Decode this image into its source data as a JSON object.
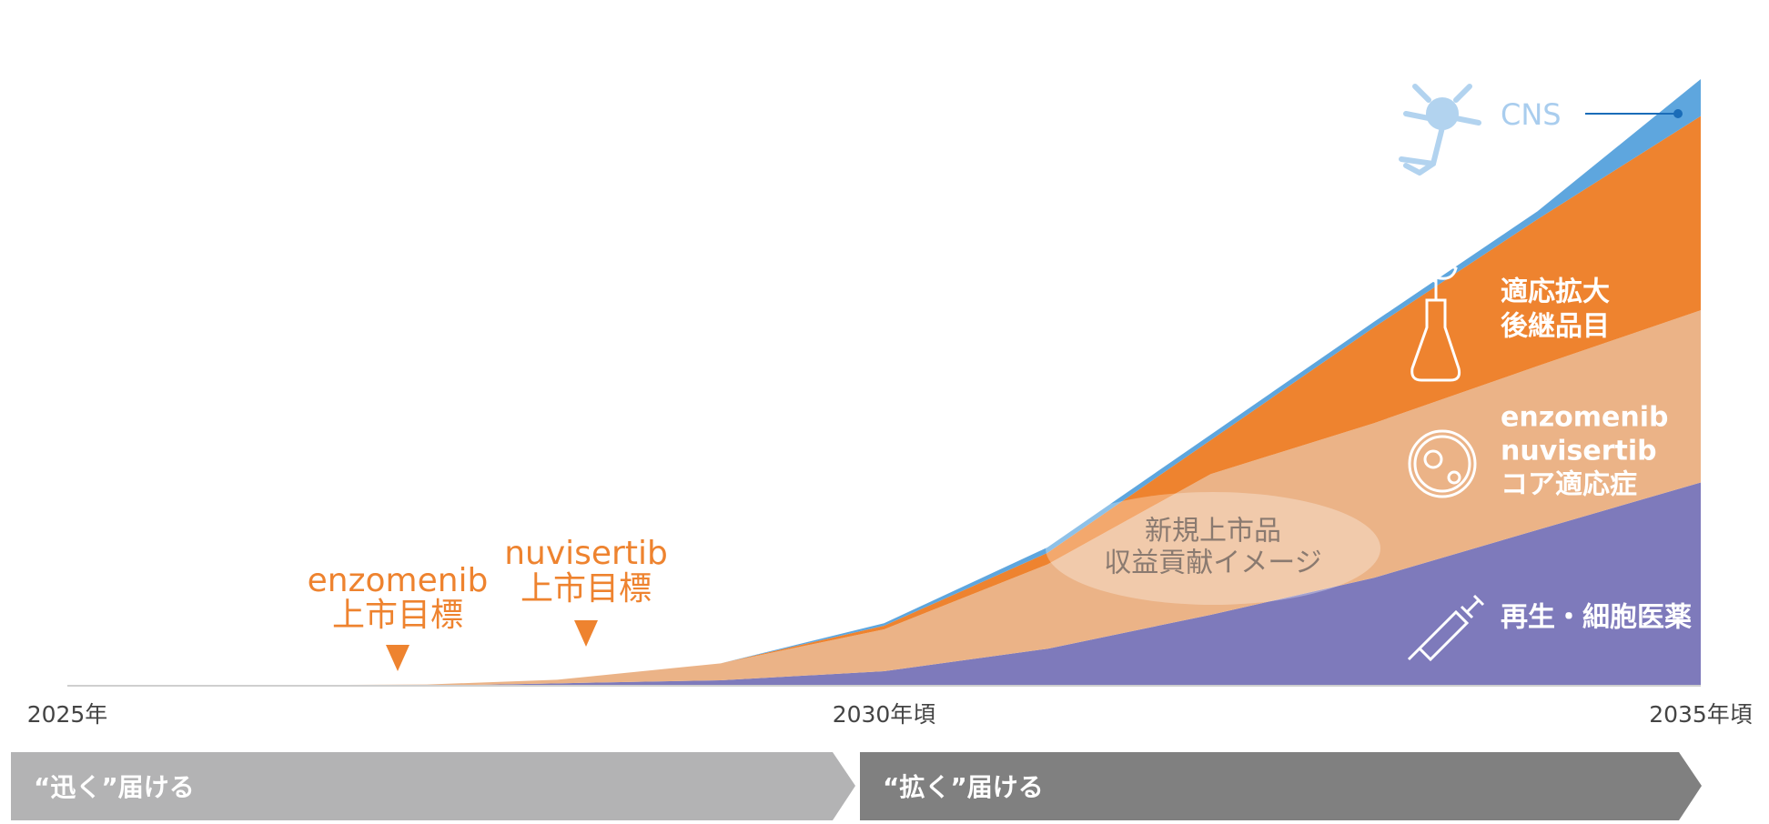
{
  "chart_data": {
    "type": "stacked-area",
    "x": [
      2025,
      2027.2,
      2028,
      2029,
      2030,
      2031,
      2032,
      2033,
      2034,
      2035
    ],
    "xlim": [
      2025,
      2035
    ],
    "xticks": [
      {
        "value": 2025,
        "label": "2025年"
      },
      {
        "value": 2030,
        "label": "2030年頃"
      },
      {
        "value": 2035,
        "label": "2035年頃"
      }
    ],
    "ylim": [
      0,
      100
    ],
    "series": [
      {
        "name": "再生・細胞医薬",
        "color": "#7e7abb",
        "values": [
          0,
          0,
          0.4,
          0.9,
          2.4,
          6.1,
          11.7,
          17.8,
          25.7,
          33.5
        ]
      },
      {
        "name": [
          "enzomenib",
          "nuvisertib",
          "コア適応症"
        ],
        "color": "#ebb387",
        "values": [
          0,
          0.2,
          0.6,
          2.8,
          6.9,
          13.9,
          23.2,
          25.5,
          27.0,
          28.4
        ]
      },
      {
        "name": [
          "適応拡大",
          "後継品目"
        ],
        "color": "#ee832f",
        "values": [
          0,
          0,
          0,
          0,
          0.6,
          1.9,
          5.6,
          15.8,
          24.2,
          32.0
        ]
      },
      {
        "name": "CNS",
        "color": "#5ea6de",
        "values": [
          0,
          0,
          0,
          0,
          0.4,
          0.9,
          0.9,
          0.9,
          1.3,
          6.1
        ]
      }
    ],
    "annotations": [
      [
        "enzomenib",
        "上市目標"
      ],
      [
        "nuvisertib",
        "上市目標"
      ],
      [
        "新規上市品",
        "収益貢献イメージ"
      ]
    ],
    "phases": [
      "“迅く”届ける",
      "“拡く”届ける"
    ]
  }
}
